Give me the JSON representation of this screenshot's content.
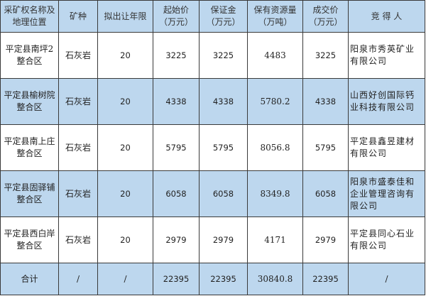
{
  "headers": [
    "采矿权名称及地理位置",
    "矿种",
    "拟出让年限",
    "起始价（万元）",
    "保证金（万元）",
    "保有资源量（万吨）",
    "成交价（万元）",
    "竞 得 人"
  ],
  "header_lines": [
    [
      "采矿权名称及",
      "地理位置"
    ],
    [
      "矿种"
    ],
    [
      "拟出让年限"
    ],
    [
      "起始价",
      "（万元）"
    ],
    [
      "保证金",
      "（万元）"
    ],
    [
      "保有资源量",
      "（万吨）"
    ],
    [
      "成交价",
      "（万元）"
    ],
    [
      "竞 得 人"
    ]
  ],
  "rows": [
    {
      "name": [
        "平定县南坪2",
        "整合区"
      ],
      "mineral": "石灰岩",
      "years": "20",
      "start_price": "3225",
      "deposit": "3225",
      "reserves": "4483",
      "deal_price": "3225",
      "winner": "阳泉市秀英矿业有限公司"
    },
    {
      "name": [
        "平定县榆树院",
        "整合区"
      ],
      "mineral": "石灰岩",
      "years": "20",
      "start_price": "4338",
      "deposit": "4338",
      "reserves": "5780.2",
      "deal_price": "4338",
      "winner": "山西好创国际钙业科技有限公司"
    },
    {
      "name": [
        "平定县南上庄",
        "整合区"
      ],
      "mineral": "石灰岩",
      "years": "20",
      "start_price": "5795",
      "deposit": "5795",
      "reserves": "8056.8",
      "deal_price": "5795",
      "winner": "平定县鑫昱建材有限公司"
    },
    {
      "name": [
        "平定县固驿铺",
        "整合区"
      ],
      "mineral": "石灰岩",
      "years": "20",
      "start_price": "6058",
      "deposit": "6058",
      "reserves": "8349.8",
      "deal_price": "6058",
      "winner": "阳泉市盛泰佳和企业管理咨询有限公司"
    },
    {
      "name": [
        "平定县西白岸",
        "整合区"
      ],
      "mineral": "石灰岩",
      "years": "20",
      "start_price": "2979",
      "deposit": "2979",
      "reserves": "4171",
      "deal_price": "2979",
      "winner": "平定县同心石业有限公司"
    }
  ],
  "total": {
    "label": "合计",
    "mineral": "/",
    "years": "/",
    "start_price": "22395",
    "deposit": "22395",
    "reserves": "30840.8",
    "deal_price": "22395",
    "winner": "/"
  },
  "colors": {
    "header_bg": "#bdd7ee",
    "alt_row_bg": "#bdd7ee",
    "border": "#3a3a3a"
  }
}
